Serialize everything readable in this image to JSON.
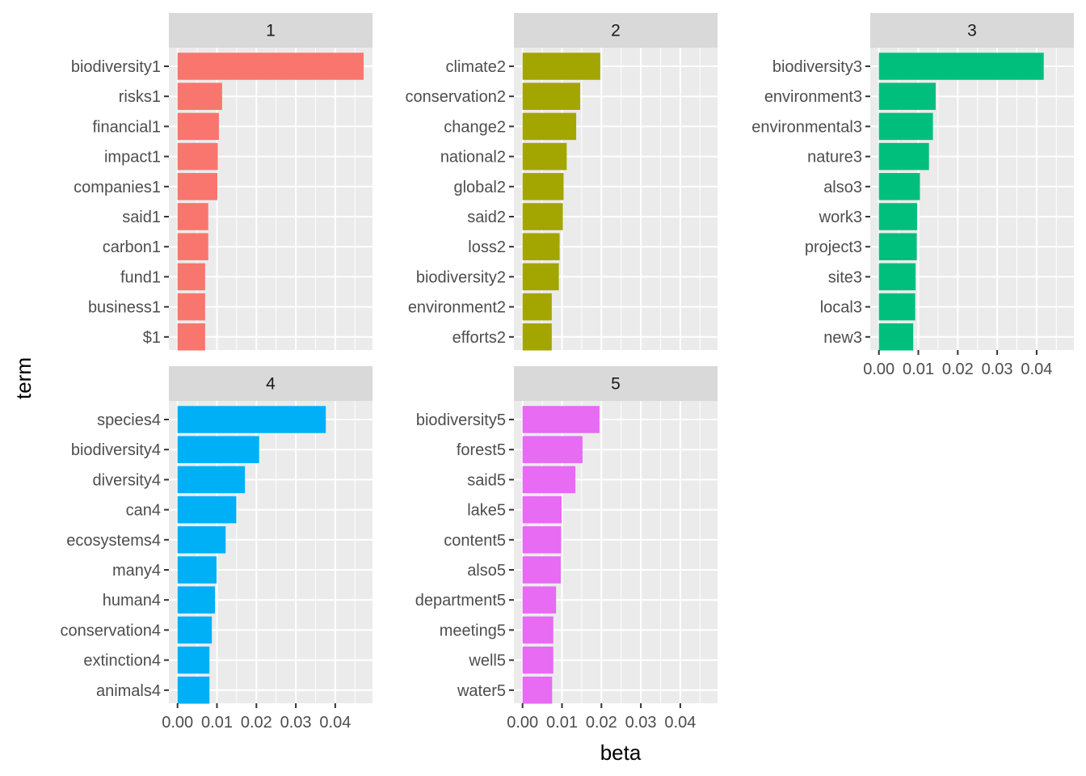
{
  "chart_data": {
    "type": "bar",
    "orientation": "horizontal",
    "faceted": true,
    "xlabel": "beta",
    "ylabel": "term",
    "xlim": [
      0,
      0.049
    ],
    "x_ticks": [
      "0.00",
      "0.01",
      "0.02",
      "0.03",
      "0.04"
    ],
    "grid": true,
    "legend": "none",
    "facets": [
      {
        "strip": "1",
        "color": "#F8766D",
        "terms": [
          "biodiversity1",
          "risks1",
          "financial1",
          "impact1",
          "companies1",
          "said1",
          "carbon1",
          "fund1",
          "business1",
          "$1"
        ],
        "values": [
          0.0472,
          0.0113,
          0.0105,
          0.0102,
          0.0101,
          0.0078,
          0.0078,
          0.007,
          0.007,
          0.007
        ]
      },
      {
        "strip": "2",
        "color": "#A3A500",
        "terms": [
          "climate2",
          "conservation2",
          "change2",
          "national2",
          "global2",
          "said2",
          "loss2",
          "biodiversity2",
          "environment2",
          "efforts2"
        ],
        "values": [
          0.0197,
          0.0146,
          0.0136,
          0.0112,
          0.0104,
          0.0102,
          0.0094,
          0.0092,
          0.0074,
          0.0074
        ]
      },
      {
        "strip": "3",
        "color": "#00BF7D",
        "terms": [
          "biodiversity3",
          "environment3",
          "environmental3",
          "nature3",
          "also3",
          "work3",
          "project3",
          "site3",
          "local3",
          "new3"
        ],
        "values": [
          0.0418,
          0.0144,
          0.0137,
          0.0127,
          0.0104,
          0.0097,
          0.0096,
          0.0093,
          0.0092,
          0.0087
        ]
      },
      {
        "strip": "4",
        "color": "#00B0F6",
        "terms": [
          "species4",
          "biodiversity4",
          "diversity4",
          "can4",
          "ecosystems4",
          "many4",
          "human4",
          "conservation4",
          "extinction4",
          "animals4"
        ],
        "values": [
          0.0376,
          0.0207,
          0.0171,
          0.0149,
          0.0122,
          0.0099,
          0.0095,
          0.0087,
          0.0081,
          0.0081
        ]
      },
      {
        "strip": "5",
        "color": "#E76BF3",
        "terms": [
          "biodiversity5",
          "forest5",
          "said5",
          "lake5",
          "content5",
          "also5",
          "department5",
          "meeting5",
          "well5",
          "water5"
        ],
        "values": [
          0.0195,
          0.0152,
          0.0134,
          0.0099,
          0.0098,
          0.0097,
          0.0085,
          0.0078,
          0.0078,
          0.0075
        ]
      }
    ]
  }
}
